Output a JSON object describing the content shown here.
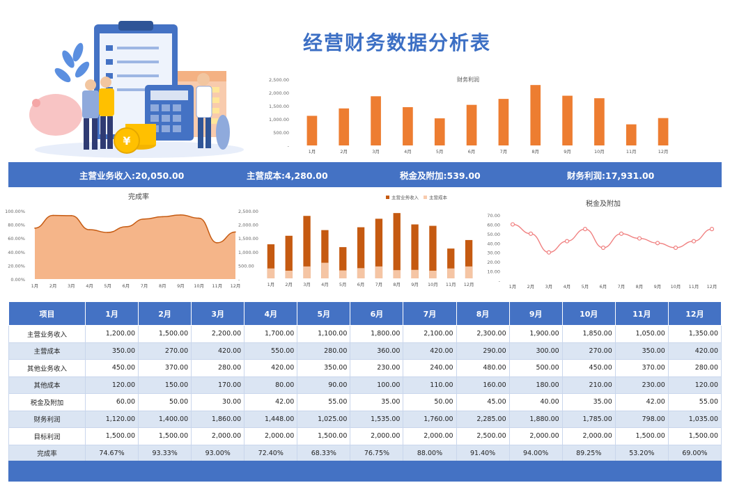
{
  "page": {
    "title": "经营财务数据分析表"
  },
  "summary": [
    {
      "label": "主营业务收入:",
      "value": "20,050.00"
    },
    {
      "label": "主营成本:",
      "value": "4,280.00"
    },
    {
      "label": "税金及附加:",
      "value": "539.00"
    },
    {
      "label": "财务利润:",
      "value": "17,931.00"
    }
  ],
  "chart_data": [
    {
      "type": "bar",
      "title": "财务利润",
      "categories": [
        "1月",
        "2月",
        "3月",
        "4月",
        "5月",
        "6月",
        "7月",
        "8月",
        "9月",
        "10月",
        "11月",
        "12月"
      ],
      "values": [
        1120,
        1400,
        1860,
        1448,
        1025,
        1535,
        1760,
        2285,
        1880,
        1785,
        798,
        1035
      ],
      "ylim": [
        0,
        2500
      ],
      "yticks": [
        "-",
        "500.00",
        "1,000.00",
        "1,500.00",
        "2,000.00",
        "2,500.00"
      ],
      "color": "#ed7d31"
    },
    {
      "type": "area",
      "title": "完成率",
      "categories": [
        "1月",
        "2月",
        "3月",
        "4月",
        "5月",
        "6月",
        "7月",
        "8月",
        "9月",
        "10月",
        "11月",
        "12月"
      ],
      "values": [
        74.67,
        93.33,
        93.0,
        72.4,
        68.33,
        76.75,
        88.0,
        91.4,
        94.0,
        89.25,
        53.2,
        69.0
      ],
      "ylim": [
        0,
        100
      ],
      "yticks": [
        "0.00%",
        "20.00%",
        "40.00%",
        "60.00%",
        "80.00%",
        "100.00%"
      ],
      "right_yticks": [
        "-",
        "500.00",
        "1,000.00",
        "1,500.00",
        "2,000.00",
        "2,500.00"
      ],
      "color": "#f4b183",
      "line_color": "#c55a11"
    },
    {
      "type": "bar",
      "categories": [
        "1月",
        "2月",
        "3月",
        "4月",
        "5月",
        "6月",
        "7月",
        "8月",
        "9月",
        "10月",
        "11月",
        "12月"
      ],
      "series": [
        {
          "name": "主营业务收入",
          "values": [
            1200,
            1500,
            2200,
            1700,
            1100,
            1800,
            2100,
            2300,
            1900,
            1850,
            1050,
            1350
          ],
          "color": "#c55a11"
        },
        {
          "name": "主营成本",
          "values": [
            350,
            270,
            420,
            550,
            280,
            360,
            420,
            290,
            300,
            270,
            350,
            420
          ],
          "color": "#f8cbad"
        }
      ],
      "ylim": [
        0,
        2500
      ],
      "legend": "top"
    },
    {
      "type": "line",
      "title": "税金及附加",
      "categories": [
        "1月",
        "2月",
        "3月",
        "4月",
        "5月",
        "6月",
        "7月",
        "8月",
        "9月",
        "10月",
        "11月",
        "12月"
      ],
      "values": [
        60,
        50,
        30,
        42,
        55,
        35,
        50,
        45,
        40,
        35,
        42,
        55
      ],
      "ylim": [
        0,
        70
      ],
      "yticks": [
        "-",
        "10.00",
        "20.00",
        "30.00",
        "40.00",
        "50.00",
        "60.00",
        "70.00"
      ],
      "color": "#f08080"
    }
  ],
  "table": {
    "headers": [
      "项目",
      "1月",
      "2月",
      "3月",
      "4月",
      "5月",
      "6月",
      "7月",
      "8月",
      "9月",
      "10月",
      "11月",
      "12月"
    ],
    "rows": [
      [
        "主营业务收入",
        "1,200.00",
        "1,500.00",
        "2,200.00",
        "1,700.00",
        "1,100.00",
        "1,800.00",
        "2,100.00",
        "2,300.00",
        "1,900.00",
        "1,850.00",
        "1,050.00",
        "1,350.00"
      ],
      [
        "主营成本",
        "350.00",
        "270.00",
        "420.00",
        "550.00",
        "280.00",
        "360.00",
        "420.00",
        "290.00",
        "300.00",
        "270.00",
        "350.00",
        "420.00"
      ],
      [
        "其他业务收入",
        "450.00",
        "370.00",
        "280.00",
        "420.00",
        "350.00",
        "230.00",
        "240.00",
        "480.00",
        "500.00",
        "450.00",
        "370.00",
        "280.00"
      ],
      [
        "其他成本",
        "120.00",
        "150.00",
        "170.00",
        "80.00",
        "90.00",
        "100.00",
        "110.00",
        "160.00",
        "180.00",
        "210.00",
        "230.00",
        "120.00"
      ],
      [
        "税金及附加",
        "60.00",
        "50.00",
        "30.00",
        "42.00",
        "55.00",
        "35.00",
        "50.00",
        "45.00",
        "40.00",
        "35.00",
        "42.00",
        "55.00"
      ],
      [
        "财务利润",
        "1,120.00",
        "1,400.00",
        "1,860.00",
        "1,448.00",
        "1,025.00",
        "1,535.00",
        "1,760.00",
        "2,285.00",
        "1,880.00",
        "1,785.00",
        "798.00",
        "1,035.00"
      ],
      [
        "目标利润",
        "1,500.00",
        "1,500.00",
        "2,000.00",
        "2,000.00",
        "1,500.00",
        "2,000.00",
        "2,000.00",
        "2,500.00",
        "2,000.00",
        "2,000.00",
        "1,500.00",
        "1,500.00"
      ],
      [
        "完成率",
        "74.67%",
        "93.33%",
        "93.00%",
        "72.40%",
        "68.33%",
        "76.75%",
        "88.00%",
        "91.40%",
        "94.00%",
        "89.25%",
        "53.20%",
        "69.00%"
      ]
    ]
  }
}
